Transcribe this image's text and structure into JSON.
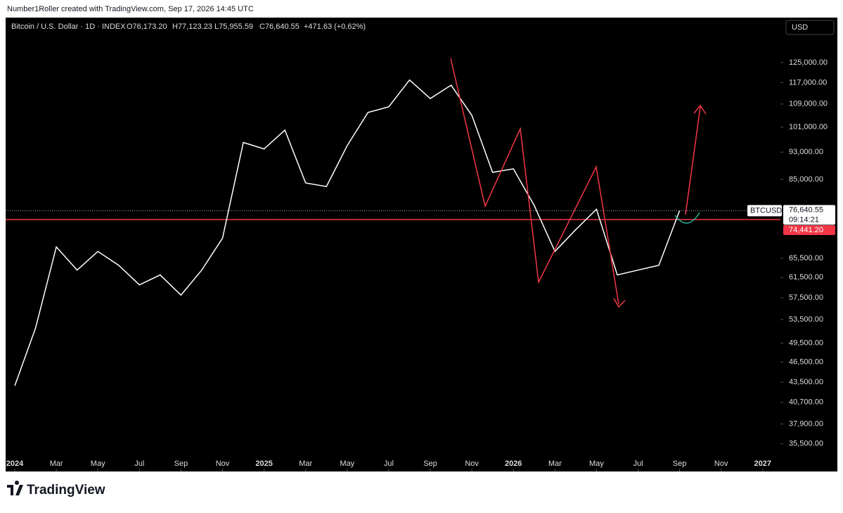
{
  "header": {
    "attribution": "Number1Roller created with TradingView.com, Sep 17, 2026 14:45 UTC",
    "logo": "TradingView"
  },
  "chart_data": {
    "type": "line",
    "title": "Bitcoin / U.S. Dollar · 1D · INDEX",
    "ohlc": [
      "O76,173.20",
      "H77,123.23",
      "L75,955.59",
      "C76,640.55",
      "+471.63 (+0.62%)"
    ],
    "currency": "USD",
    "x": [
      "2024-01",
      "2024-02",
      "2024-03",
      "2024-04",
      "2024-05",
      "2024-06",
      "2024-07",
      "2024-08",
      "2024-09",
      "2024-10",
      "2024-11",
      "2024-12",
      "2025-01",
      "2025-02",
      "2025-03",
      "2025-04",
      "2025-05",
      "2025-06",
      "2025-07",
      "2025-08",
      "2025-09",
      "2025-10",
      "2025-11",
      "2025-12",
      "2026-01",
      "2026-02",
      "2026-03",
      "2026-04",
      "2026-05",
      "2026-06",
      "2026-07",
      "2026-08",
      "2026-09"
    ],
    "series": [
      {
        "name": "BTCUSD",
        "color": "#ffffff",
        "values": [
          43000,
          52000,
          68000,
          63000,
          67000,
          64000,
          60000,
          62000,
          58000,
          63000,
          70000,
          96000,
          94000,
          100000,
          84000,
          83000,
          95000,
          106000,
          108000,
          118000,
          111000,
          116000,
          105000,
          87000,
          88000,
          78000,
          67000,
          72000,
          77000,
          62000,
          63000,
          64000,
          76640.55
        ]
      }
    ],
    "last_price": {
      "value": 76640.55,
      "label": "76,640.55"
    },
    "countdown": "09:14:21",
    "level": {
      "value": 74441.2,
      "label": "74,441.20",
      "color": "#f23645"
    },
    "ylim": [
      32400,
      145000
    ],
    "log_scale": true,
    "yticks": [
      {
        "value": 125000,
        "label": "125,000.00"
      },
      {
        "value": 117000,
        "label": "117,000.00"
      },
      {
        "value": 109000,
        "label": "109,000.00"
      },
      {
        "value": 101000,
        "label": "101,000.00"
      },
      {
        "value": 93000,
        "label": "93,000.00"
      },
      {
        "value": 85000,
        "label": "85,000.00"
      },
      {
        "value": 65500,
        "label": "65,500.00"
      },
      {
        "value": 61500,
        "label": "61,500.00"
      },
      {
        "value": 57500,
        "label": "57,500.00"
      },
      {
        "value": 53500,
        "label": "53,500.00"
      },
      {
        "value": 49500,
        "label": "49,500.00"
      },
      {
        "value": 46500,
        "label": "46,500.00"
      },
      {
        "value": 43500,
        "label": "43,500.00"
      },
      {
        "value": 40700,
        "label": "40,700.00"
      },
      {
        "value": 37900,
        "label": "37,900.00"
      },
      {
        "value": 35500,
        "label": "35,500.00"
      }
    ],
    "xticks": [
      {
        "value": "2024-01",
        "label": "2024"
      },
      {
        "value": "2024-03",
        "label": "Mar"
      },
      {
        "value": "2024-05",
        "label": "May"
      },
      {
        "value": "2024-07",
        "label": "Jul"
      },
      {
        "value": "2024-09",
        "label": "Sep"
      },
      {
        "value": "2024-11",
        "label": "Nov"
      },
      {
        "value": "2025-01",
        "label": "2025"
      },
      {
        "value": "2025-03",
        "label": "Mar"
      },
      {
        "value": "2025-05",
        "label": "May"
      },
      {
        "value": "2025-07",
        "label": "Jul"
      },
      {
        "value": "2025-09",
        "label": "Sep"
      },
      {
        "value": "2025-11",
        "label": "Nov"
      },
      {
        "value": "2026-01",
        "label": "2026"
      },
      {
        "value": "2026-03",
        "label": "Mar"
      },
      {
        "value": "2026-05",
        "label": "May"
      },
      {
        "value": "2026-07",
        "label": "Jul"
      },
      {
        "value": "2026-09",
        "label": "Sep"
      },
      {
        "value": "2026-11",
        "label": "Nov"
      },
      {
        "value": "2027-01",
        "label": "2027"
      }
    ]
  }
}
